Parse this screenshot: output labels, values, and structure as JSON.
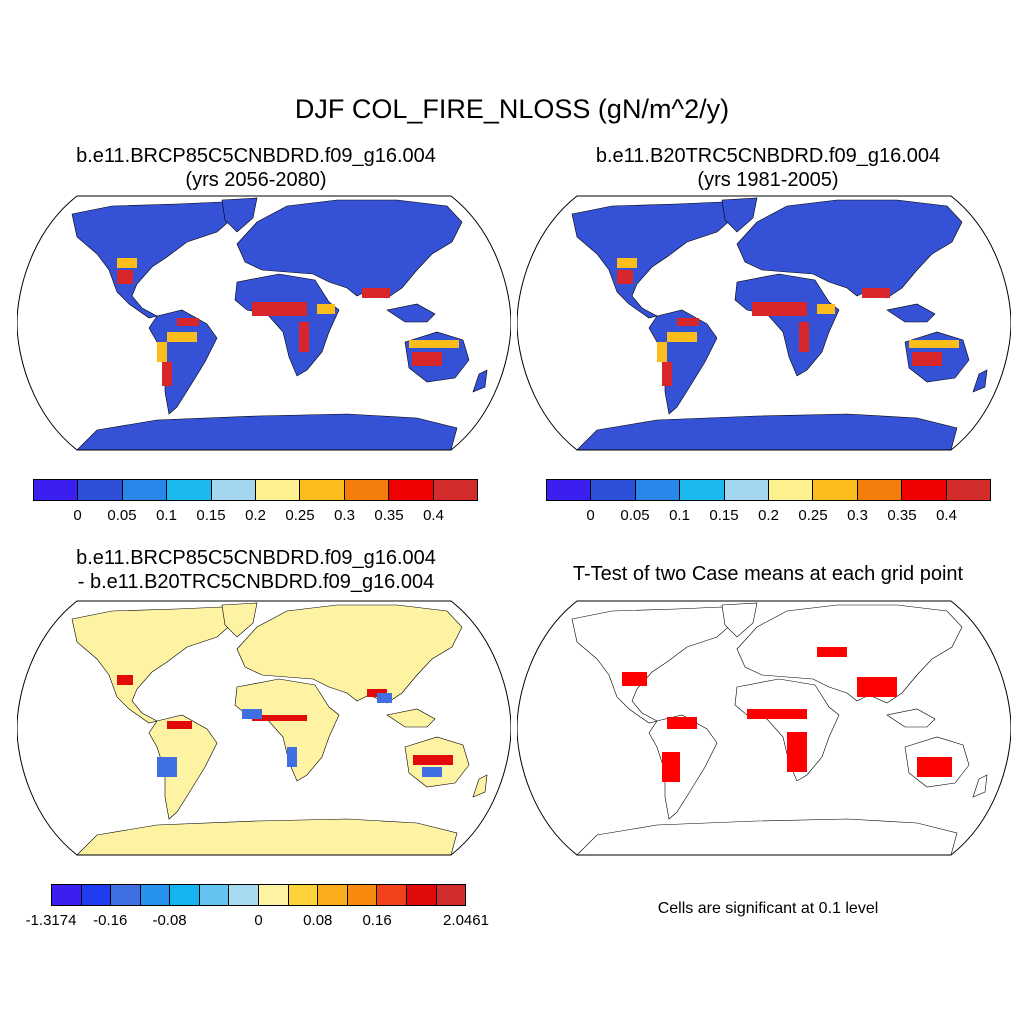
{
  "title": "DJF COL_FIRE_NLOSS (gN/m^2/y)",
  "panels": {
    "future": {
      "title_line1": "b.e11.BRCP85C5CNBDRD.f09_g16.004",
      "title_line2": "(yrs 2056-2080)"
    },
    "historical": {
      "title_line1": "b.e11.B20TRC5CNBDRD.f09_g16.004",
      "title_line2": "(yrs 1981-2005)"
    },
    "difference": {
      "title_line1": "b.e11.BRCP85C5CNBDRD.f09_g16.004",
      "title_line2": "- b.e11.B20TRC5CNBDRD.f09_g16.004"
    },
    "ttest": {
      "title": "T-Test of two Case means at each grid point",
      "note": "Cells are significant at 0.1 level"
    }
  },
  "colorbars": {
    "abs": {
      "colors": [
        "#3a1ff0",
        "#2e4fd8",
        "#2788ea",
        "#1cb8f0",
        "#a5d6ef",
        "#fdf08e",
        "#fbbd1c",
        "#f57d0c",
        "#f00000",
        "#d32c2c"
      ],
      "labels": [
        "0",
        "0.05",
        "0.1",
        "0.15",
        "0.2",
        "0.25",
        "0.3",
        "0.35",
        "0.4"
      ]
    },
    "diff": {
      "colors": [
        "#3a1ff0",
        "#1f3cf0",
        "#3f6fe0",
        "#2791ee",
        "#14b4f0",
        "#64c4ef",
        "#a8daf2",
        "#fdf3a2",
        "#fdd33b",
        "#fbad1c",
        "#f78a0c",
        "#f2421c",
        "#e00a0a",
        "#d32c2c"
      ],
      "labels": [
        "-1.3174",
        "-0.16",
        "-0.08",
        "0",
        "0.08",
        "0.16",
        "2.0461"
      ]
    }
  },
  "map_colors": {
    "ocean": "#ffffff",
    "coast": "#000000",
    "low_land": "#3552d6",
    "high_fire": "#d8262a",
    "diff_land": "#fdf3a2",
    "significant": "#ff0000"
  }
}
